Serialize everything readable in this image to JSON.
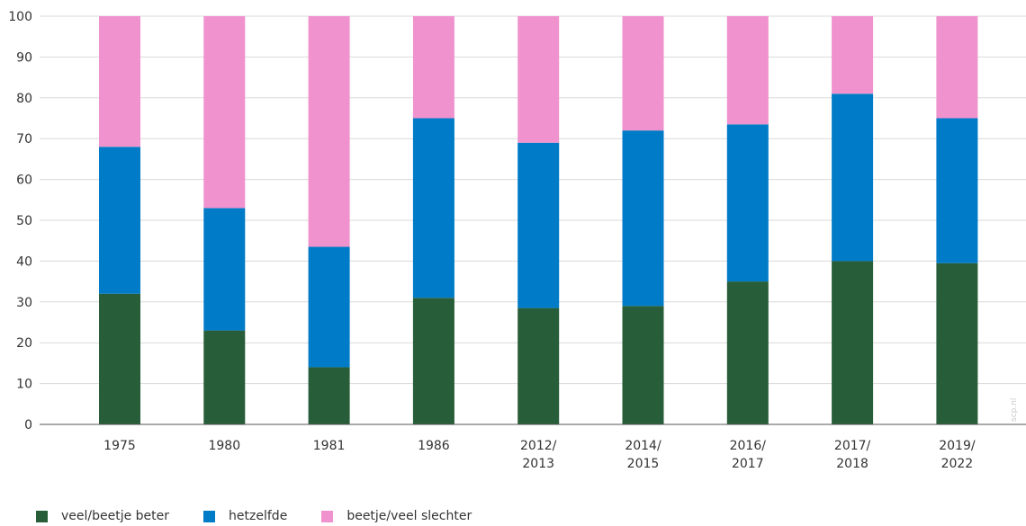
{
  "chart_data": {
    "type": "bar",
    "stacked": true,
    "categories": [
      [
        "1975"
      ],
      [
        "1980"
      ],
      [
        "1981"
      ],
      [
        "1986"
      ],
      [
        "2012/",
        "2013"
      ],
      [
        "2014/",
        "2015"
      ],
      [
        "2016/",
        "2017"
      ],
      [
        "2017/",
        "2018"
      ],
      [
        "2019/",
        "2022"
      ]
    ],
    "series": [
      {
        "name": "veel/beetje beter",
        "color": "#275d38",
        "values": [
          32,
          23,
          14,
          31,
          28.5,
          29,
          35,
          40,
          39.5
        ]
      },
      {
        "name": "hetzelfde",
        "color": "#007bc7",
        "values": [
          36,
          30,
          29.5,
          44,
          40.5,
          43,
          38.5,
          41,
          35.5
        ]
      },
      {
        "name": "beetje/veel slechter",
        "color": "#f092cd",
        "values": [
          32,
          47,
          56.5,
          25,
          31,
          28,
          26.5,
          19,
          25
        ]
      }
    ],
    "yticks": [
      0,
      10,
      20,
      30,
      40,
      50,
      60,
      70,
      80,
      90,
      100
    ],
    "ylim": [
      0,
      100
    ],
    "grid": true,
    "legend_position": "bottom-left"
  },
  "watermark": "scp.nl"
}
